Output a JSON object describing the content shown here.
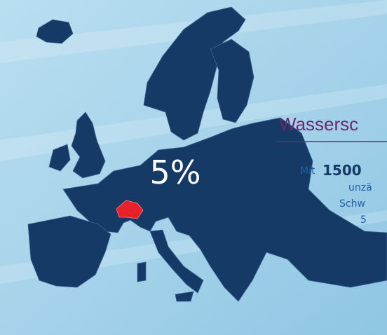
{
  "map": {
    "label": "5%"
  },
  "panel": {
    "title": "Wassersc",
    "intro": "Mit",
    "highlight": "1500",
    "lines": [
      "unzä",
      "Schw",
      "5"
    ]
  }
}
